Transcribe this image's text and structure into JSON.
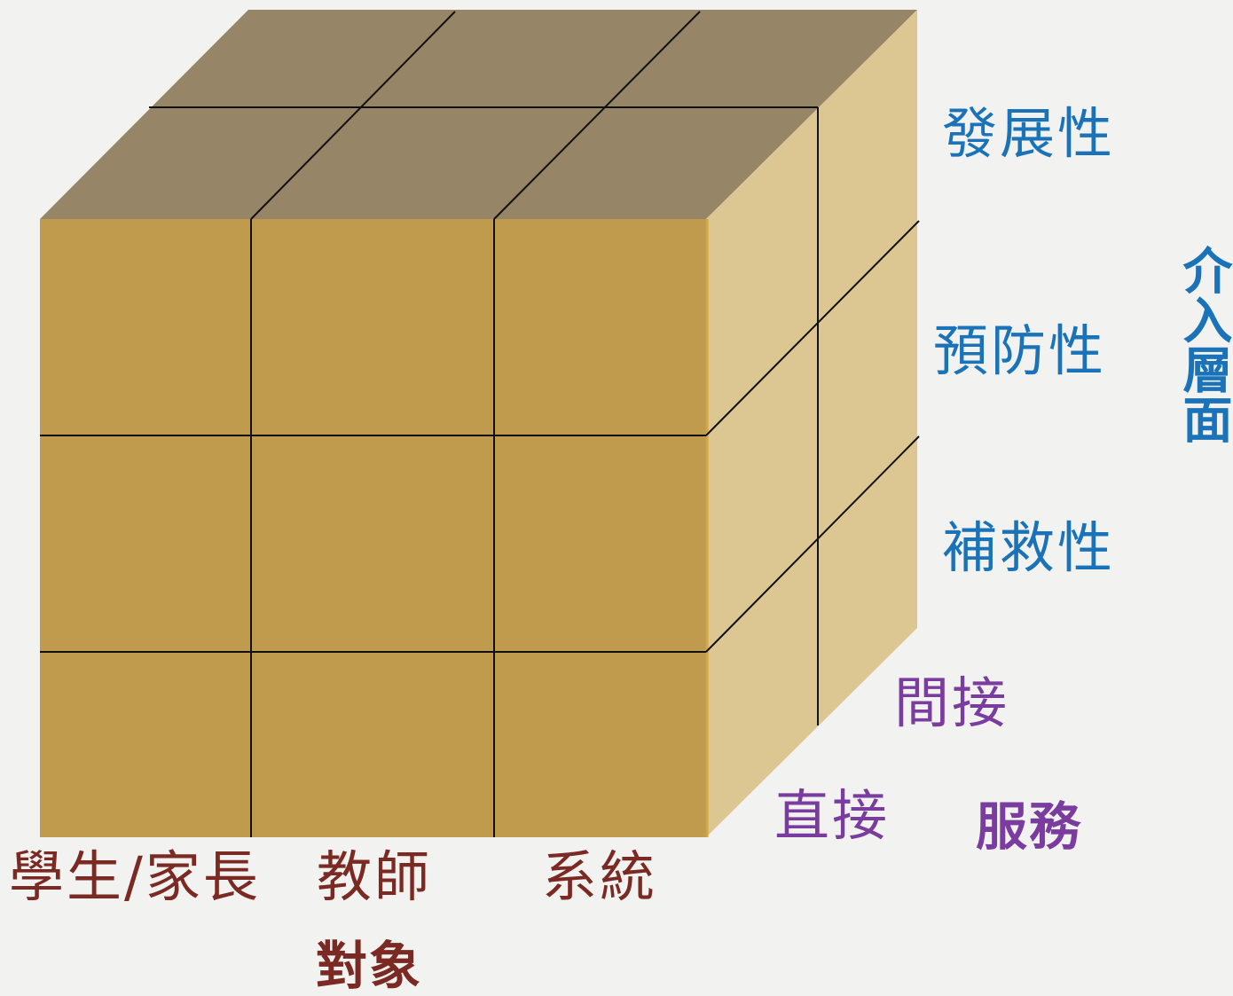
{
  "colors": {
    "front_face": "#c09b4e",
    "top_face": "#968566",
    "right_face": "#dcc692",
    "grid_line": "#111111",
    "level_label": "#1a73b8",
    "service_label": "#7a3c9e",
    "target_label": "#7a2a22",
    "background": "#f2f2f0"
  },
  "axes": {
    "level": {
      "title": "介入層面",
      "items": [
        "發展性",
        "預防性",
        "補救性"
      ]
    },
    "service": {
      "title": "服務",
      "items": [
        "間接",
        "直接"
      ]
    },
    "target": {
      "title": "對象",
      "items": [
        "學生/家長",
        "教師",
        "系統"
      ]
    }
  }
}
